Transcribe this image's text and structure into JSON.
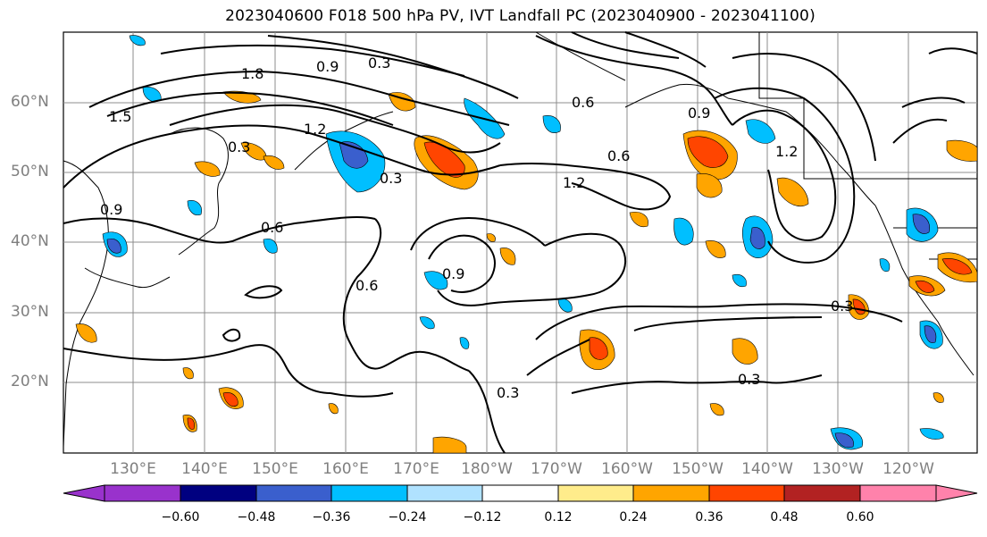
{
  "title": "2023040600 F018 500 hPa PV, IVT Landfall PC (2023040900 - 2023041100)",
  "lat_labels": [
    "60°N",
    "50°N",
    "40°N",
    "30°N",
    "20°N"
  ],
  "lon_labels": [
    "130°E",
    "140°E",
    "150°E",
    "160°E",
    "170°E",
    "180°W",
    "170°W",
    "160°W",
    "150°W",
    "140°W",
    "130°W",
    "120°W"
  ],
  "contour_labels": [
    "0.3",
    "0.9",
    "1.8",
    "1.5",
    "1.2",
    "0.3",
    "0.3",
    "0.6",
    "0.9",
    "0.6",
    "0.6",
    "1.2",
    "0.9",
    "1.2",
    "0.3",
    "0.3",
    "0.3",
    "0.6",
    "0.9"
  ],
  "colorbar": {
    "ticks": [
      "−0.60",
      "−0.48",
      "−0.36",
      "−0.24",
      "−0.12",
      "0.12",
      "0.24",
      "0.36",
      "0.48",
      "0.60"
    ],
    "colors": [
      "#9932cc",
      "#000080",
      "#3a5fcd",
      "#00bfff",
      "#b0e2ff",
      "#ffffff",
      "#ffec8b",
      "#ffa500",
      "#ff4500",
      "#b22222",
      "#ff82ab"
    ]
  }
}
